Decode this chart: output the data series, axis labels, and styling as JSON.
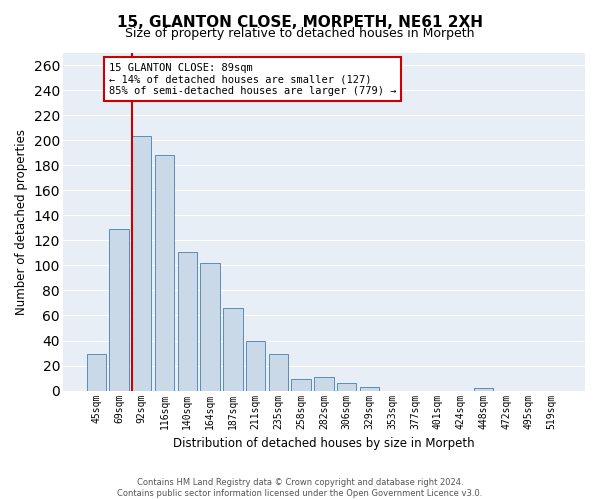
{
  "title1": "15, GLANTON CLOSE, MORPETH, NE61 2XH",
  "title2": "Size of property relative to detached houses in Morpeth",
  "xlabel": "Distribution of detached houses by size in Morpeth",
  "ylabel": "Number of detached properties",
  "categories": [
    "45sqm",
    "69sqm",
    "92sqm",
    "116sqm",
    "140sqm",
    "164sqm",
    "187sqm",
    "211sqm",
    "235sqm",
    "258sqm",
    "282sqm",
    "306sqm",
    "329sqm",
    "353sqm",
    "377sqm",
    "401sqm",
    "424sqm",
    "448sqm",
    "472sqm",
    "495sqm",
    "519sqm"
  ],
  "values": [
    29,
    129,
    203,
    188,
    111,
    102,
    66,
    40,
    29,
    9,
    11,
    6,
    3,
    0,
    0,
    0,
    0,
    2,
    0,
    0,
    0
  ],
  "bar_color": "#c9d9e8",
  "bar_edge_color": "#5b8db8",
  "annotation_text_line1": "15 GLANTON CLOSE: 89sqm",
  "annotation_text_line2": "← 14% of detached houses are smaller (127)",
  "annotation_text_line3": "85% of semi-detached houses are larger (779) →",
  "vline_color": "#cc0000",
  "vline_x_index": 2,
  "footer1": "Contains HM Land Registry data © Crown copyright and database right 2024.",
  "footer2": "Contains public sector information licensed under the Open Government Licence v3.0.",
  "ylim": [
    0,
    270
  ],
  "yticks": [
    0,
    20,
    40,
    60,
    80,
    100,
    120,
    140,
    160,
    180,
    200,
    220,
    240,
    260
  ],
  "bg_color": "#e8eef5",
  "grid_color": "#ffffff",
  "title_fontsize": 11,
  "subtitle_fontsize": 9,
  "bar_width": 0.85
}
